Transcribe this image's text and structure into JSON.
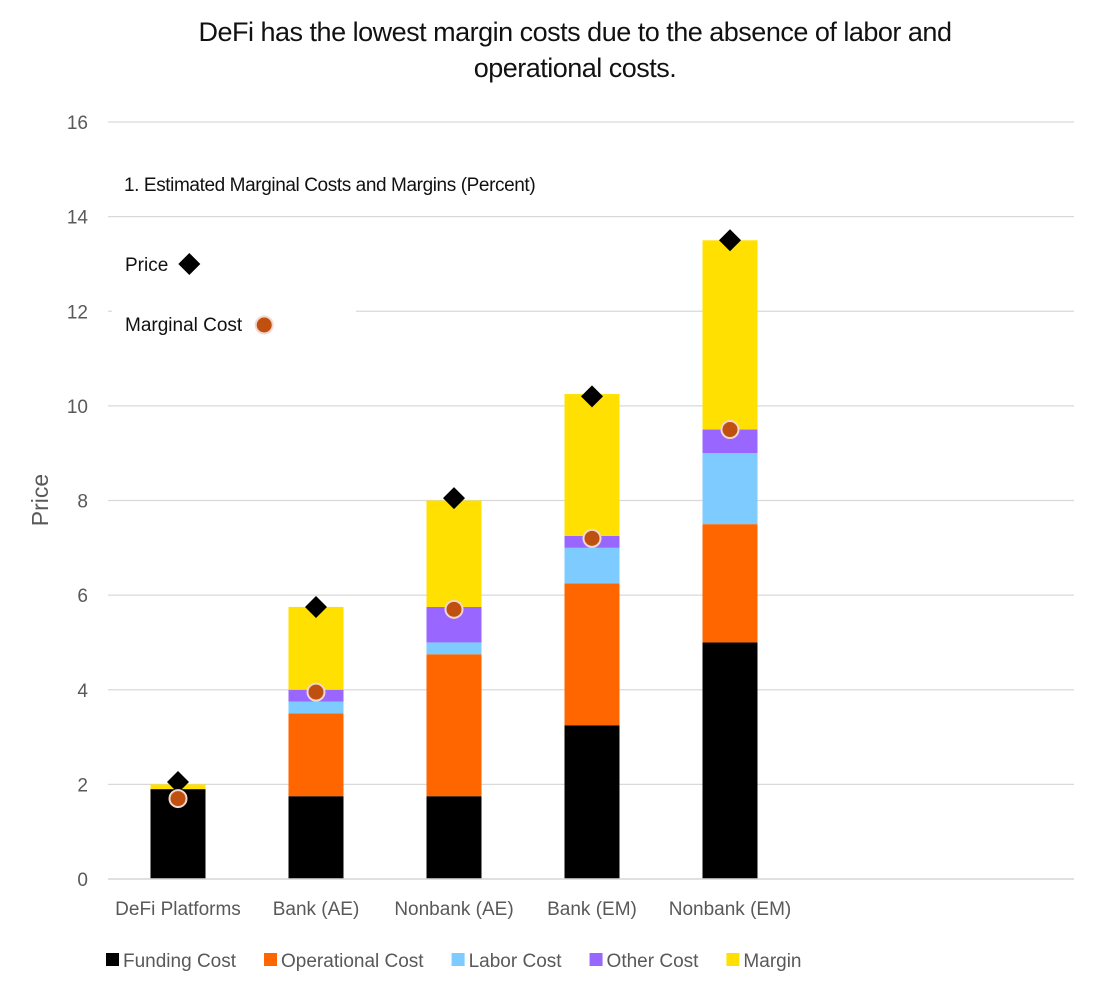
{
  "chart_data": {
    "type": "bar",
    "stacked": true,
    "title": "DeFi has the lowest margin costs due to the absence of labor and operational costs.",
    "subtitle": "1. Estimated Marginal Costs and Margins (Percent)",
    "ylabel": "Price",
    "xlabel": "",
    "ylim": [
      0,
      16
    ],
    "yticks": [
      0,
      2,
      4,
      6,
      8,
      10,
      12,
      14,
      16
    ],
    "grid": true,
    "legend_position": "bottom",
    "categories": [
      "DeFi Platforms",
      "Bank (AE)",
      "Nonbank (AE)",
      "Bank (EM)",
      "Nonbank (EM)"
    ],
    "series": [
      {
        "name": "Funding Cost",
        "color": "#000000",
        "values": [
          1.9,
          1.75,
          1.75,
          3.25,
          5.0
        ]
      },
      {
        "name": "Operational Cost",
        "color": "#ff6600",
        "values": [
          0,
          1.75,
          3.0,
          3.0,
          2.5
        ]
      },
      {
        "name": "Labor Cost",
        "color": "#7ecbff",
        "values": [
          0,
          0.25,
          0.25,
          0.75,
          1.5
        ]
      },
      {
        "name": "Other Cost",
        "color": "#9966ff",
        "values": [
          0,
          0.25,
          0.75,
          0.25,
          0.5
        ]
      },
      {
        "name": "Margin",
        "color": "#ffe000",
        "values": [
          0.1,
          1.75,
          2.25,
          3.0,
          4.0
        ]
      }
    ],
    "markers": [
      {
        "name": "Price",
        "shape": "diamond",
        "color": "#000000",
        "values": [
          2.05,
          5.75,
          8.05,
          10.2,
          13.5
        ]
      },
      {
        "name": "Marginal Cost",
        "shape": "circle",
        "color": "#c0500f",
        "values": [
          1.7,
          3.95,
          5.7,
          7.2,
          9.5
        ]
      }
    ],
    "axis_color": "#595959",
    "grid_color": "#d9d9d9"
  }
}
